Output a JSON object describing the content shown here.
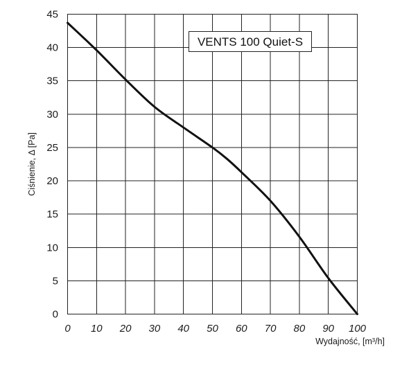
{
  "chart_data": {
    "type": "line",
    "title": "VENTS 100 Quiet-S",
    "xlabel": "Wydajność, [m³/h]",
    "ylabel": "Ciśnienie, Δ [Pa]",
    "xlim": [
      0,
      100
    ],
    "ylim": [
      0,
      45
    ],
    "xticks": [
      "0",
      "10",
      "20",
      "30",
      "40",
      "50",
      "60",
      "70",
      "80",
      "90",
      "100"
    ],
    "yticks": [
      "0",
      "5",
      "10",
      "15",
      "20",
      "25",
      "30",
      "35",
      "40",
      "45"
    ],
    "grid": true,
    "series": [
      {
        "x": [
          0,
          10,
          20,
          30,
          40,
          50,
          55,
          60,
          70,
          80,
          90,
          100
        ],
        "y": [
          43.7,
          39.6,
          35.2,
          31.1,
          28.0,
          25.0,
          23.3,
          21.3,
          17.0,
          11.6,
          5.4,
          0
        ]
      }
    ]
  }
}
